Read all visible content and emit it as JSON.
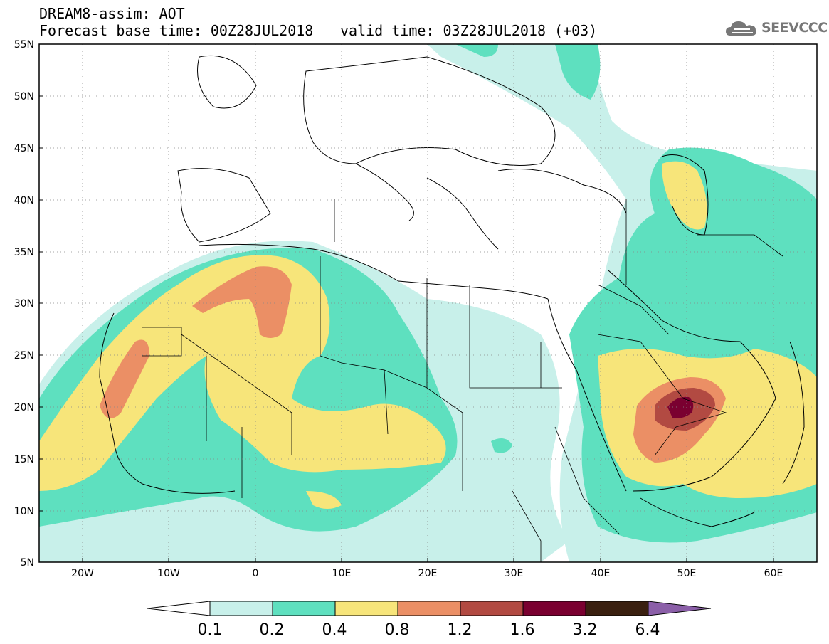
{
  "header": {
    "title": "DREAM8-assim: AOT",
    "base_time": "Forecast base time: 00Z28JUL2018",
    "valid_time": "valid time: 03Z28JUL2018 (+03)"
  },
  "logo": {
    "text": "SEEVCCC",
    "icon": "cloud-icon"
  },
  "map": {
    "lon_labels": [
      "20W",
      "10W",
      "0",
      "10E",
      "20E",
      "30E",
      "40E",
      "50E",
      "60E"
    ],
    "lat_labels": [
      "55N",
      "50N",
      "45N",
      "40N",
      "35N",
      "30N",
      "25N",
      "20N",
      "15N",
      "10N",
      "5N"
    ],
    "extent": {
      "lon": [
        -25,
        65
      ],
      "lat": [
        5,
        55
      ]
    },
    "grid": "dotted",
    "variable": "Aerosol Optical Thickness"
  },
  "colorbar": {
    "labels": [
      "0.1",
      "0.2",
      "0.4",
      "0.8",
      "1.2",
      "1.6",
      "3.2",
      "6.4"
    ],
    "colors": [
      "#ffffff",
      "#c8f0ea",
      "#5ee0bf",
      "#f7e57a",
      "#eb8f65",
      "#b24a42",
      "#7a0030",
      "#3a2010",
      "#8b5fa8"
    ]
  }
}
